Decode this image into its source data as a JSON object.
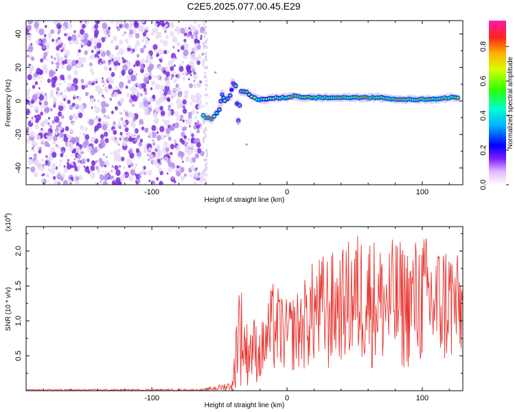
{
  "title": "C2E5.2025.077.00.45.E29",
  "colors": {
    "snr_line": "#e8342f",
    "noise_purple": "#7a2be0",
    "noise_light": "#d9c7f5"
  },
  "chart_data": [
    {
      "type": "heatmap",
      "name": "spectrogram",
      "xlabel": "Height of straight line (km)",
      "ylabel": "Frequency (Hz)",
      "xlim": [
        -193,
        130
      ],
      "ylim": [
        -50,
        48
      ],
      "x_ticks": [
        -100,
        0,
        100
      ],
      "x_tick_labels": [
        "-100",
        "0",
        "100"
      ],
      "y_ticks": [
        -40,
        -20,
        0,
        20,
        40
      ],
      "y_tick_labels": [
        "-40",
        "-20",
        "0",
        "20",
        "40"
      ],
      "noise_region_x": [
        -193,
        -62
      ],
      "signal_track": [
        {
          "x": -62,
          "y": -9,
          "amp": 0.85
        },
        {
          "x": -56,
          "y": -11,
          "amp": 0.9
        },
        {
          "x": -50,
          "y": -5,
          "amp": 0.6
        },
        {
          "x": -48,
          "y": 4,
          "amp": 0.4
        },
        {
          "x": -46,
          "y": 0,
          "amp": 0.7
        },
        {
          "x": -42,
          "y": 3,
          "amp": 0.5
        },
        {
          "x": -40,
          "y": 11,
          "amp": 0.35
        },
        {
          "x": -38,
          "y": 9,
          "amp": 0.6
        },
        {
          "x": -36,
          "y": -12,
          "amp": 0.4
        },
        {
          "x": -34,
          "y": 6,
          "amp": 0.55
        },
        {
          "x": -30,
          "y": 5,
          "amp": 0.6
        },
        {
          "x": -26,
          "y": 3,
          "amp": 0.7
        },
        {
          "x": -22,
          "y": 1,
          "amp": 0.8
        },
        {
          "x": -15,
          "y": 1,
          "amp": 0.7
        },
        {
          "x": -8,
          "y": 2,
          "amp": 0.75
        },
        {
          "x": 0,
          "y": 2,
          "amp": 0.8
        },
        {
          "x": 5,
          "y": 3,
          "amp": 0.85
        },
        {
          "x": 12,
          "y": 2,
          "amp": 0.8
        },
        {
          "x": 20,
          "y": 2,
          "amp": 0.85
        },
        {
          "x": 30,
          "y": 2,
          "amp": 0.8
        },
        {
          "x": 40,
          "y": 2,
          "amp": 0.85
        },
        {
          "x": 50,
          "y": 2,
          "amp": 0.8
        },
        {
          "x": 60,
          "y": 2,
          "amp": 0.9
        },
        {
          "x": 70,
          "y": 2,
          "amp": 0.8
        },
        {
          "x": 80,
          "y": 1,
          "amp": 0.85
        },
        {
          "x": 90,
          "y": 1,
          "amp": 0.8
        },
        {
          "x": 100,
          "y": 1,
          "amp": 0.85
        },
        {
          "x": 110,
          "y": 1,
          "amp": 0.8
        },
        {
          "x": 120,
          "y": 2,
          "amp": 0.85
        },
        {
          "x": 128,
          "y": 2,
          "amp": 0.8
        }
      ],
      "colorbar": {
        "label": "Normalized spectral amplitude",
        "range": [
          0,
          0.95
        ],
        "ticks": [
          0.0,
          0.2,
          0.4,
          0.6,
          0.8
        ],
        "tick_labels": [
          "0.0",
          "0.2",
          "0.4",
          "0.6",
          "0.8"
        ]
      }
    },
    {
      "type": "line",
      "name": "snr",
      "xlabel": "Height of straight line (km)",
      "ylabel": "SNR (10 * v/v)",
      "scale_label": "(x10",
      "scale_exponent": "4",
      "scale_close": ")",
      "xlim": [
        -193,
        130
      ],
      "ylim": [
        0,
        23500
      ],
      "x_ticks": [
        -100,
        0,
        100
      ],
      "x_tick_labels": [
        "-100",
        "0",
        "100"
      ],
      "y_ticks": [
        5000,
        10000,
        15000,
        20000
      ],
      "y_tick_labels": [
        "0.5",
        "1.0",
        "1.5",
        "2.0"
      ],
      "envelope": [
        {
          "x": -193,
          "low": 0,
          "high": 200
        },
        {
          "x": -62,
          "low": 0,
          "high": 250
        },
        {
          "x": -50,
          "low": 0,
          "high": 900
        },
        {
          "x": -40,
          "low": 0,
          "high": 1500
        },
        {
          "x": -36,
          "low": 500,
          "high": 18000
        },
        {
          "x": -30,
          "low": 500,
          "high": 10000
        },
        {
          "x": -25,
          "low": 1000,
          "high": 11000
        },
        {
          "x": -20,
          "low": 1000,
          "high": 9000
        },
        {
          "x": -10,
          "low": 2000,
          "high": 16000
        },
        {
          "x": 0,
          "low": 2500,
          "high": 13000
        },
        {
          "x": 10,
          "low": 2500,
          "high": 15000
        },
        {
          "x": 20,
          "low": 3000,
          "high": 19000
        },
        {
          "x": 30,
          "low": 2000,
          "high": 20000
        },
        {
          "x": 40,
          "low": 4000,
          "high": 20000
        },
        {
          "x": 50,
          "low": 3000,
          "high": 23000
        },
        {
          "x": 60,
          "low": 3000,
          "high": 23000
        },
        {
          "x": 70,
          "low": 3000,
          "high": 21000
        },
        {
          "x": 80,
          "low": 2000,
          "high": 22000
        },
        {
          "x": 90,
          "low": 3000,
          "high": 21000
        },
        {
          "x": 100,
          "low": 3000,
          "high": 23000
        },
        {
          "x": 110,
          "low": 2500,
          "high": 21000
        },
        {
          "x": 120,
          "low": 3000,
          "high": 22000
        },
        {
          "x": 130,
          "low": 4000,
          "high": 18000
        }
      ]
    }
  ]
}
